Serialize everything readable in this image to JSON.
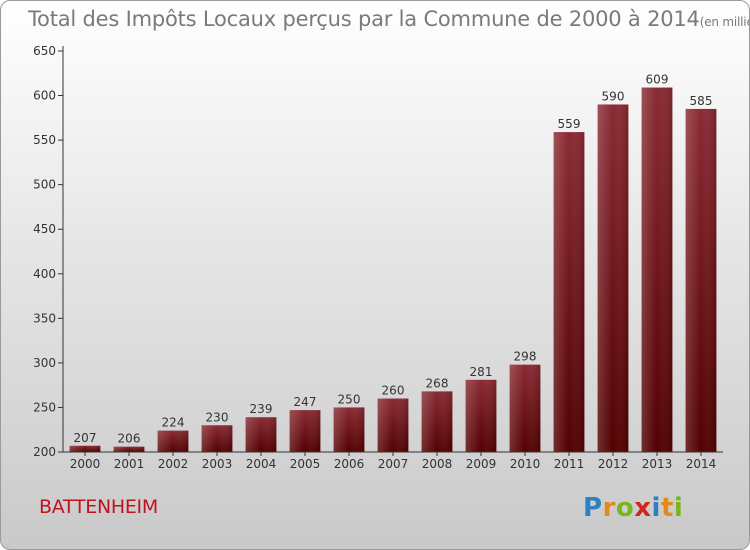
{
  "chart_data": {
    "type": "bar",
    "title": "Total des Impôts Locaux perçus par la Commune de 2000 à 2014",
    "title_unit": "(en milliers d'€)",
    "categories": [
      "2000",
      "2001",
      "2002",
      "2003",
      "2004",
      "2005",
      "2006",
      "2007",
      "2008",
      "2009",
      "2010",
      "2011",
      "2012",
      "2013",
      "2014"
    ],
    "values": [
      207,
      206,
      224,
      230,
      239,
      247,
      250,
      260,
      268,
      281,
      298,
      559,
      590,
      609,
      585
    ],
    "ylim": [
      200,
      650
    ],
    "yticks": [
      200,
      250,
      300,
      350,
      400,
      450,
      500,
      550,
      600,
      650
    ],
    "grid": false,
    "colors": {
      "bar_top": "#8a2a33",
      "bar_bottom": "#520000",
      "axis": "#333333",
      "text": "#333333"
    }
  },
  "commune": "BATTENHEIM",
  "logo": {
    "letters": [
      "P",
      "r",
      "o",
      "x",
      "i",
      "t",
      "i"
    ],
    "colors": [
      "#2f7fc1",
      "#e48a1a",
      "#7ab51d",
      "#d4251f",
      "#2f7fc1",
      "#e48a1a",
      "#7ab51d"
    ]
  }
}
